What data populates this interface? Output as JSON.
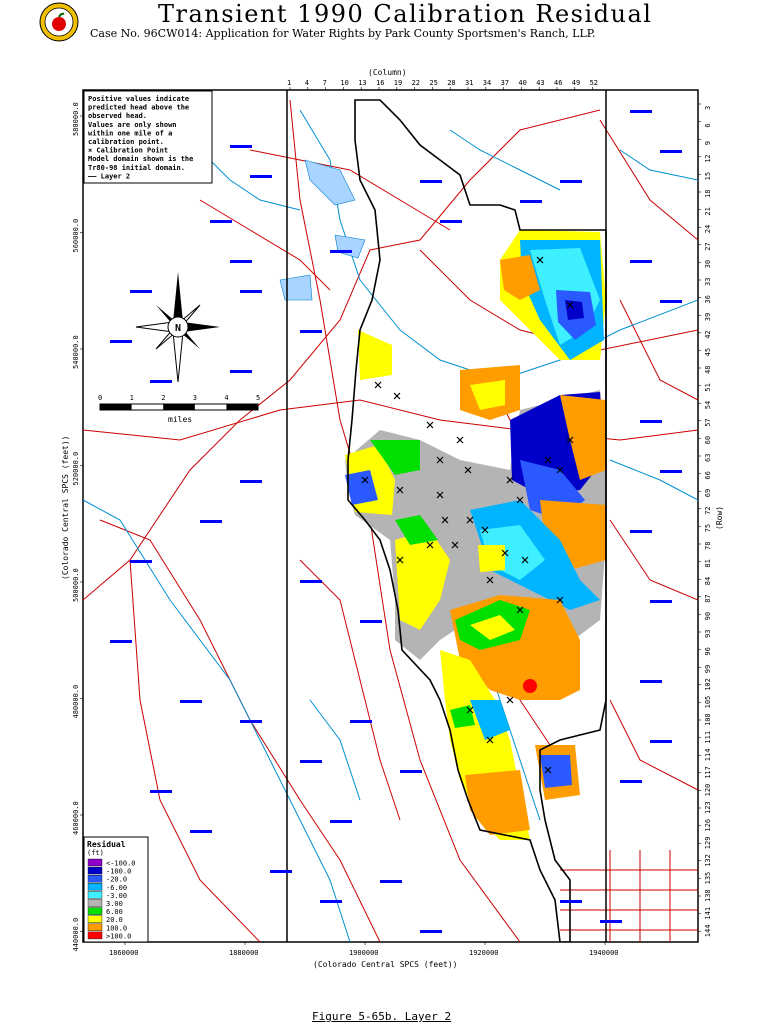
{
  "header": {
    "title": "Transient 1990 Calibration Residual",
    "subtitle": "Case No. 96CW014: Application for Water Rights by Park County Sportsmen's Ranch, LLP."
  },
  "notes": [
    "Positive values indicate",
    "predicted head above the",
    "observed head.",
    "Values are only shown",
    "within one mile of a",
    "calibration point.",
    "× Calibration Point",
    "Model domain shown is the",
    "Tr80-98 initial domain.",
    "—— Layer 2"
  ],
  "scale_bar": {
    "ticks": [
      "0",
      "1",
      "2",
      "3",
      "4",
      "5"
    ],
    "unit": "miles"
  },
  "compass": {
    "label": "N"
  },
  "axes": {
    "top_title": "(Column)",
    "top_ticks": [
      "1",
      "4",
      "7",
      "10",
      "13",
      "16",
      "19",
      "22",
      "25",
      "28",
      "31",
      "34",
      "37",
      "40",
      "43",
      "46",
      "49",
      "52"
    ],
    "right_title": "(Row)",
    "right_ticks": [
      "3",
      "6",
      "9",
      "12",
      "15",
      "18",
      "21",
      "24",
      "27",
      "30",
      "33",
      "36",
      "39",
      "42",
      "45",
      "48",
      "51",
      "54",
      "57",
      "60",
      "63",
      "66",
      "69",
      "72",
      "75",
      "78",
      "81",
      "84",
      "87",
      "90",
      "93",
      "96",
      "99",
      "102",
      "105",
      "108",
      "111",
      "114",
      "117",
      "120",
      "123",
      "126",
      "129",
      "132",
      "135",
      "138",
      "141",
      "144"
    ],
    "left_title": "(Colorado Central SPCS (feet))",
    "left_ticks": [
      "580000.0",
      "560000.0",
      "540000.0",
      "520000.0",
      "500000.0",
      "480000.0",
      "460000.0",
      "440000.0"
    ],
    "bottom_title": "(Colorado Central SPCS (feet))",
    "bottom_ticks": [
      "1860000",
      "1880000",
      "1900000",
      "1920000",
      "1940000"
    ]
  },
  "legend": {
    "title": "Residual",
    "unit": "(ft)",
    "items": [
      {
        "label": "<-100.0",
        "color": "#8f00c8"
      },
      {
        "label": "-100.0",
        "color": "#0000c8"
      },
      {
        "label": "-20.0",
        "color": "#2a5aff"
      },
      {
        "label": "-6.00",
        "color": "#00b4ff"
      },
      {
        "label": "-3.00",
        "color": "#3ef0ff"
      },
      {
        "label": "3.00",
        "color": "#b4b4b4"
      },
      {
        "label": "6.00",
        "color": "#00e000"
      },
      {
        "label": "20.0",
        "color": "#ffff00"
      },
      {
        "label": "100.0",
        "color": "#ff9c00"
      },
      {
        "label": ">100.0",
        "color": "#ff0000"
      }
    ]
  },
  "caption": "Figure 5-65b.  Layer 2",
  "colors": {
    "roads": "#cc0000",
    "rivers": "#0090d0",
    "labels": "#0000ff",
    "domain": "#000000",
    "frame": "#000000"
  }
}
